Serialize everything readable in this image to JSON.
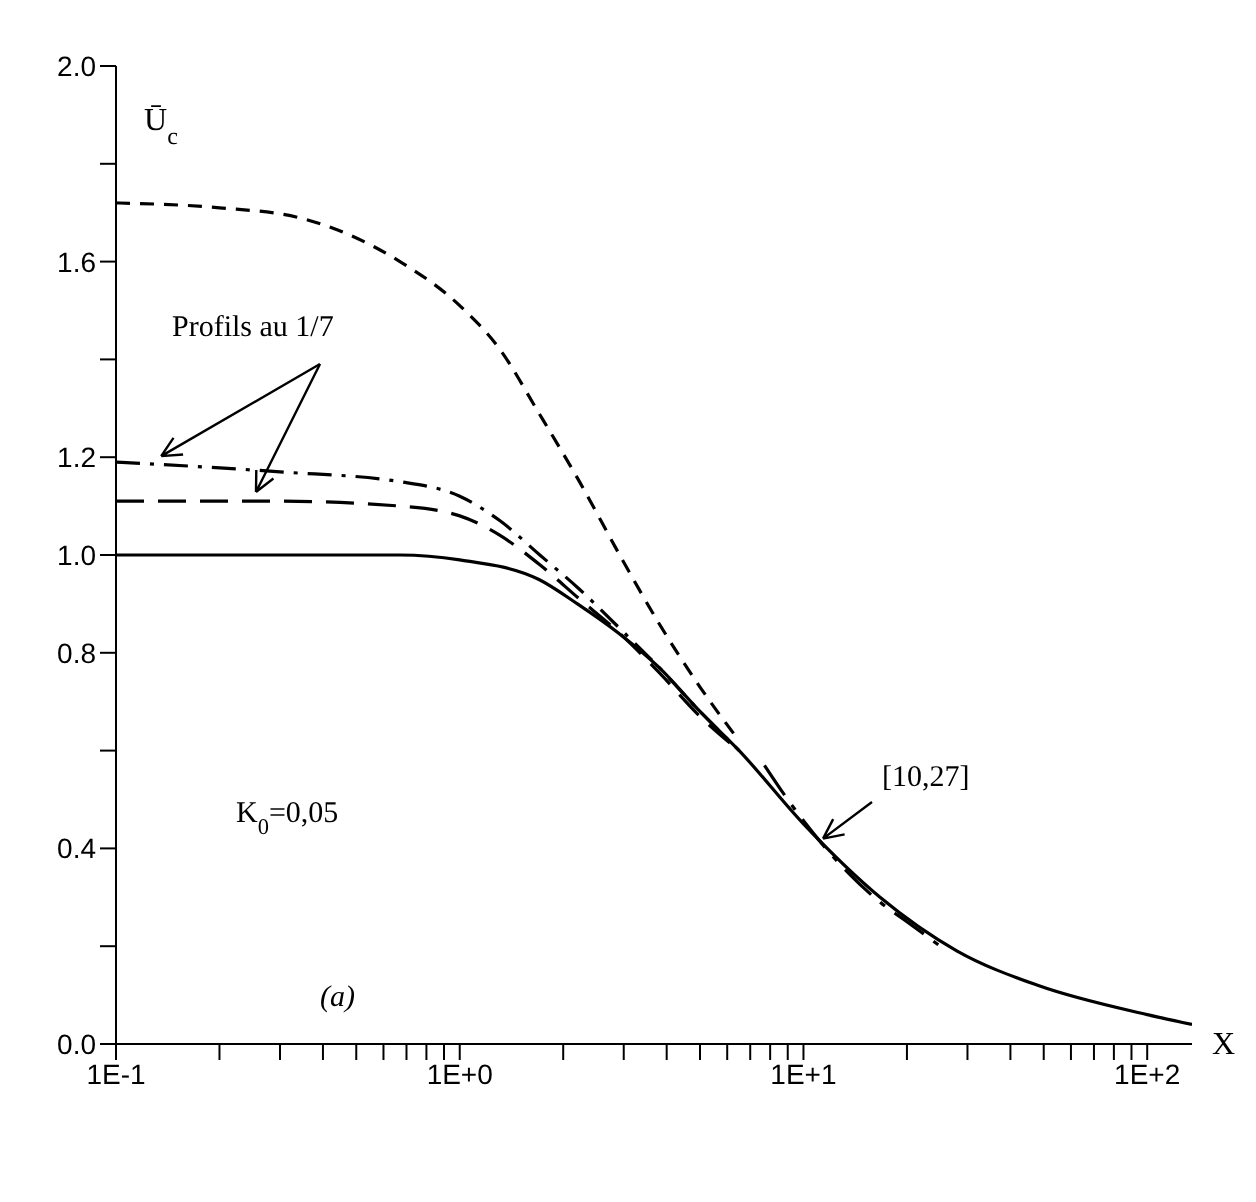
{
  "chart_data": {
    "type": "line",
    "ylabel": "Ū$_{c}$",
    "xlabel": "X",
    "log": "x",
    "marker": "none",
    "xlim": [
      0.1,
      135
    ],
    "ylim": [
      0,
      2
    ],
    "xticks": [
      {
        "value": 0.1,
        "label": "1E-1"
      },
      {
        "value": 0.2,
        "label": null
      },
      {
        "value": 0.3,
        "label": null
      },
      {
        "value": 0.4,
        "label": null
      },
      {
        "value": 0.5,
        "label": null
      },
      {
        "value": 0.6,
        "label": null
      },
      {
        "value": 0.7,
        "label": null
      },
      {
        "value": 0.8,
        "label": null
      },
      {
        "value": 0.9,
        "label": null
      },
      {
        "value": 1,
        "label": "1E+0"
      },
      {
        "value": 2,
        "label": null
      },
      {
        "value": 3,
        "label": null
      },
      {
        "value": 4,
        "label": null
      },
      {
        "value": 5,
        "label": null
      },
      {
        "value": 6,
        "label": null
      },
      {
        "value": 7,
        "label": null
      },
      {
        "value": 8,
        "label": null
      },
      {
        "value": 9,
        "label": null
      },
      {
        "value": 10,
        "label": "1E+1"
      },
      {
        "value": 20,
        "label": null
      },
      {
        "value": 30,
        "label": null
      },
      {
        "value": 40,
        "label": null
      },
      {
        "value": 50,
        "label": null
      },
      {
        "value": 60,
        "label": null
      },
      {
        "value": 70,
        "label": null
      },
      {
        "value": 80,
        "label": null
      },
      {
        "value": 90,
        "label": null
      },
      {
        "value": 100,
        "label": "1E+2"
      }
    ],
    "yticks": [
      {
        "value": 0,
        "label": "0.0"
      },
      {
        "value": 0.2,
        "label": null
      },
      {
        "value": 0.4,
        "label": "0.4"
      },
      {
        "value": 0.6,
        "label": null
      },
      {
        "value": 0.8,
        "label": "0.8"
      },
      {
        "value": 1,
        "label": "1.0"
      },
      {
        "value": 1.2,
        "label": "1.2"
      },
      {
        "value": 1.4,
        "label": null
      },
      {
        "value": 1.6,
        "label": "1.6"
      },
      {
        "value": 1.8,
        "label": null
      },
      {
        "value": 2,
        "label": "2.0"
      }
    ],
    "annotations": [
      {
        "text": "Profils au 1/7",
        "x": 0.13,
        "y": 1.19
      },
      {
        "text": "[10,27]",
        "x": 11.4,
        "y": 0.42
      },
      "K$_{0}$=0,05",
      "(a)"
    ],
    "series": [
      {
        "color": "#000000",
        "line_style": "solid",
        "x": [
          0.1,
          0.3,
          0.67,
          1,
          1.7,
          2.2,
          2.9,
          3.8,
          5,
          6.5,
          10,
          16.7,
          28,
          48,
          100,
          135
        ],
        "values": [
          1,
          1,
          1,
          0.99,
          0.95,
          0.9,
          0.84,
          0.77,
          0.68,
          0.6,
          0.45,
          0.3,
          0.19,
          0.12,
          0.06,
          0.04
        ]
      },
      {
        "color": "#000000",
        "line_style": "dashed",
        "x": [
          0.1,
          0.2,
          0.34,
          0.67,
          1,
          1.31,
          1.7,
          2.23,
          2.92,
          3.8,
          5,
          6.5
        ],
        "values": [
          1.72,
          1.71,
          1.69,
          1.6,
          1.51,
          1.42,
          1.29,
          1.15,
          1,
          0.86,
          0.73,
          0.62
        ]
      },
      {
        "color": "#000000",
        "line_style": "dashed",
        "x": [
          0.1,
          0.3,
          0.67,
          1,
          1.31,
          1.71,
          2.23,
          2.92,
          3.8,
          5,
          6.5
        ],
        "values": [
          1.19,
          1.17,
          1.15,
          1.12,
          1.07,
          1,
          0.93,
          0.85,
          0.77,
          0.68,
          0.6
        ]
      },
      {
        "color": "#000000",
        "line_style": "dashed",
        "x": [
          0.1,
          0.3,
          0.67,
          1,
          1.31,
          1.71,
          2.23,
          2.92,
          3.8,
          5,
          6.5
        ],
        "values": [
          1.11,
          1.11,
          1.1,
          1.08,
          1.04,
          0.98,
          0.91,
          0.84,
          0.76,
          0.67,
          0.6
        ]
      },
      {
        "color": "#000000",
        "line_style": "dashed",
        "x": [
          7.7,
          9,
          11,
          13.5,
          16.7,
          20,
          25
        ],
        "values": [
          0.57,
          0.5,
          0.42,
          0.35,
          0.29,
          0.25,
          0.2
        ]
      }
    ]
  }
}
